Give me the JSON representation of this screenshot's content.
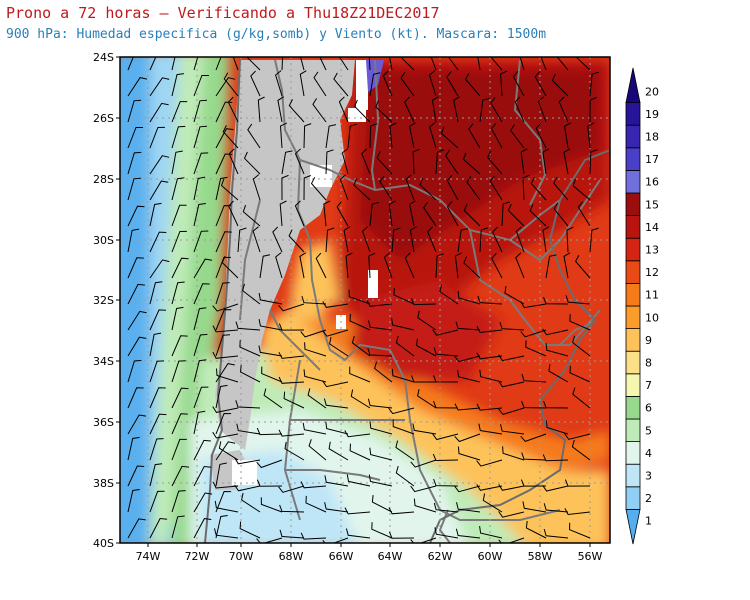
{
  "header": {
    "title": "Prono a 72 horas — Verificando a Thu18Z21DEC2017",
    "subtitle": "900 hPa: Humedad especifica (g/kg,somb) y Viento (kt). Mascara: 1500m"
  },
  "map": {
    "lat_labels": [
      "24S",
      "26S",
      "28S",
      "30S",
      "32S",
      "34S",
      "36S",
      "38S",
      "40S"
    ],
    "lon_labels": [
      "74W",
      "72W",
      "70W",
      "68W",
      "66W",
      "64W",
      "62W",
      "60W",
      "58W",
      "56W"
    ],
    "extent": {
      "lat": [
        -40,
        -24
      ],
      "lon": [
        -75.1,
        -55.4
      ]
    },
    "mask_color": "#c6c6c6"
  },
  "colorbar": {
    "labels": [
      "1",
      "2",
      "3",
      "4",
      "5",
      "6",
      "7",
      "8",
      "9",
      "10",
      "11",
      "12",
      "13",
      "14",
      "15",
      "16",
      "17",
      "18",
      "19",
      "20"
    ],
    "colors": [
      "#54aef0",
      "#8fd0f4",
      "#bfe6f7",
      "#e1f5ec",
      "#bfebb8",
      "#96d98c",
      "#f5f7b0",
      "#fbe08a",
      "#fdc35a",
      "#fb9d2c",
      "#f57a1a",
      "#ea4a16",
      "#d42414",
      "#b81410",
      "#9a0e0e",
      "#6f6fdd",
      "#4a3fc8",
      "#3825b0",
      "#261499",
      "#17087a"
    ]
  }
}
